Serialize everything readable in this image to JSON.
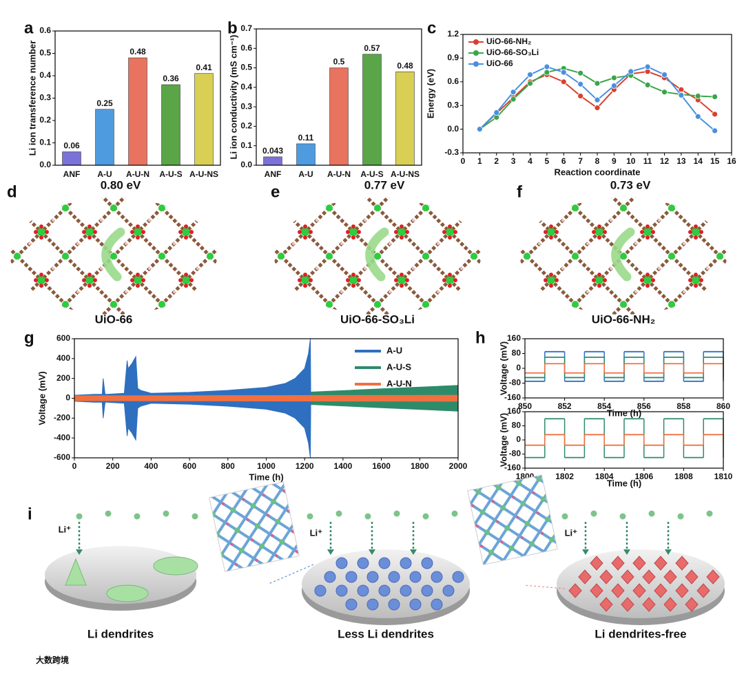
{
  "chart_data": [
    {
      "panel": "a",
      "type": "bar",
      "ylabel": "Li ion transference number",
      "categories": [
        "ANF",
        "A-U",
        "A-U-N",
        "A-U-S",
        "A-U-NS"
      ],
      "values": [
        0.06,
        0.25,
        0.48,
        0.36,
        0.41
      ],
      "colors": [
        "#7a72d8",
        "#4f9be0",
        "#e8735e",
        "#5aa548",
        "#d9cf55"
      ],
      "ylim": [
        0,
        0.6
      ],
      "yticks": [
        {
          "value": 0,
          "label": "0.0"
        },
        0.1,
        0.2,
        0.3,
        0.4,
        0.5,
        0.6
      ]
    },
    {
      "panel": "b",
      "type": "bar",
      "ylabel": "Li ion conductivity (mS cm⁻¹)",
      "categories": [
        "ANF",
        "A-U",
        "A-U-N",
        "A-U-S",
        "A-U-NS"
      ],
      "values": [
        0.043,
        0.11,
        0.5,
        0.57,
        0.48
      ],
      "colors": [
        "#7a72d8",
        "#4f9be0",
        "#e8735e",
        "#5aa548",
        "#d9cf55"
      ],
      "ylim": [
        0,
        0.7
      ],
      "yticks": [
        {
          "value": 0,
          "label": "0.0"
        },
        0.1,
        0.2,
        0.3,
        0.4,
        0.5,
        0.6,
        0.7
      ]
    },
    {
      "panel": "c",
      "type": "line",
      "xlabel": "Reaction coordinate",
      "ylabel": "Energy (eV)",
      "x": [
        1,
        2,
        3,
        4,
        5,
        6,
        7,
        8,
        9,
        10,
        11,
        12,
        13,
        14,
        15
      ],
      "series": [
        {
          "name": "UiO-66-NH₂",
          "color": "#d9412e",
          "values": [
            0,
            0.2,
            0.4,
            0.6,
            0.69,
            0.6,
            0.42,
            0.27,
            0.5,
            0.7,
            0.73,
            0.65,
            0.5,
            0.37,
            0.19
          ]
        },
        {
          "name": "UiO-66-SO₃Li",
          "color": "#3aa54a",
          "values": [
            0,
            0.15,
            0.38,
            0.58,
            0.72,
            0.77,
            0.71,
            0.58,
            0.65,
            0.68,
            0.56,
            0.47,
            0.44,
            0.42,
            0.41
          ]
        },
        {
          "name": "UiO-66",
          "color": "#4a8fe0",
          "values": [
            0,
            0.21,
            0.47,
            0.69,
            0.79,
            0.72,
            0.57,
            0.37,
            0.55,
            0.73,
            0.79,
            0.69,
            0.43,
            0.16,
            -0.02
          ]
        }
      ],
      "xlim": [
        0,
        16
      ],
      "xticks": [
        0,
        1,
        2,
        3,
        4,
        5,
        6,
        7,
        8,
        9,
        10,
        11,
        12,
        13,
        14,
        15,
        16
      ],
      "ylim": [
        -0.3,
        1.2
      ],
      "yticks": [
        -0.3,
        {
          "value": 0,
          "label": "0.0"
        },
        0.3,
        0.6,
        0.9,
        1.2
      ],
      "legend": "upper left"
    },
    {
      "panel": "g",
      "type": "band",
      "xlabel": "Time (h)",
      "ylabel": "Voltage (mV)",
      "series": [
        {
          "name": "A-U",
          "color": "#2e6fbf",
          "x": [
            0,
            100,
            145,
            150,
            160,
            170,
            260,
            275,
            280,
            300,
            320,
            330,
            345,
            400,
            600,
            800,
            1000,
            1100,
            1150,
            1200,
            1220,
            1230,
            1232
          ],
          "values": [
            30,
            40,
            40,
            200,
            40,
            40,
            50,
            380,
            300,
            350,
            420,
            100,
            80,
            50,
            60,
            80,
            110,
            150,
            200,
            300,
            450,
            600,
            0
          ]
        },
        {
          "name": "A-U-S",
          "color": "#2e8b6a",
          "x": [
            0,
            400,
            800,
            1200,
            1600,
            2000
          ],
          "values": [
            20,
            25,
            40,
            60,
            95,
            130
          ]
        },
        {
          "name": "A-U-N",
          "color": "#f07040",
          "x": [
            0,
            2000
          ],
          "values": [
            25,
            30
          ]
        }
      ],
      "xlim": [
        0,
        2000
      ],
      "xticks": [
        0,
        200,
        400,
        600,
        800,
        1000,
        1200,
        1400,
        1600,
        1800,
        2000
      ],
      "ylim": [
        -600,
        600
      ],
      "yticks": [
        -600,
        -400,
        -200,
        0,
        200,
        400,
        600
      ],
      "legend": "upper right"
    },
    {
      "panel": "h",
      "type": "step",
      "xlabel": "Time (h)",
      "ylabel": "Voltage (mV)",
      "x": [
        850,
        851,
        852,
        853,
        854,
        855,
        856,
        857,
        858,
        859,
        860
      ],
      "series": [
        {
          "color": "#2e6fbf",
          "values": [
            -70,
            90,
            -70,
            90,
            -70,
            90,
            -70,
            90,
            -70,
            90,
            -70
          ]
        },
        {
          "color": "#2e8b6a",
          "values": [
            -50,
            60,
            -50,
            60,
            -50,
            60,
            -50,
            60,
            -50,
            60,
            -50
          ]
        },
        {
          "color": "#f07040",
          "values": [
            -25,
            25,
            -25,
            25,
            -25,
            25,
            -25,
            25,
            -25,
            25,
            -25
          ]
        }
      ],
      "xlim": [
        850,
        860
      ],
      "xticks": [
        850,
        852,
        854,
        856,
        858,
        860
      ],
      "ylim": [
        -160,
        160
      ],
      "yticks": [
        -160,
        -80,
        0,
        80,
        160
      ]
    },
    {
      "type": "step",
      "xlabel": "Time (h)",
      "ylabel": "Voltage (mV)",
      "x": [
        1800,
        1801,
        1802,
        1803,
        1804,
        1805,
        1806,
        1807,
        1808,
        1809,
        1810
      ],
      "series": [
        {
          "color": "#2e8b6a",
          "values": [
            -100,
            120,
            -100,
            120,
            -100,
            120,
            -100,
            120,
            -100,
            120,
            -100
          ]
        },
        {
          "color": "#f07040",
          "values": [
            -30,
            30,
            -30,
            30,
            -30,
            30,
            -30,
            30,
            -30,
            30,
            -30
          ]
        }
      ],
      "xlim": [
        1800,
        1810
      ],
      "xticks": [
        1800,
        1802,
        1804,
        1806,
        1808,
        1810
      ],
      "ylim": [
        -160,
        160
      ],
      "yticks": [
        -160,
        -80,
        0,
        80,
        160
      ]
    }
  ],
  "structures": [
    {
      "panel": "d",
      "energy": "0.80 eV",
      "label": "UiO-66",
      "color": "#4a8fd0"
    },
    {
      "panel": "e",
      "energy": "0.77 eV",
      "label": "UiO-66-SO₃Li",
      "color": "#2e9a50"
    },
    {
      "panel": "f",
      "energy": "0.73 eV",
      "label": "UiO-66-NH₂",
      "color": "#e87a3a"
    }
  ],
  "schematic": {
    "panel": "i",
    "ion": "Li⁺",
    "captions": [
      "Li dendrites",
      "Less Li dendrites",
      "Li dendrites-free"
    ]
  },
  "watermark": "大数跨境"
}
